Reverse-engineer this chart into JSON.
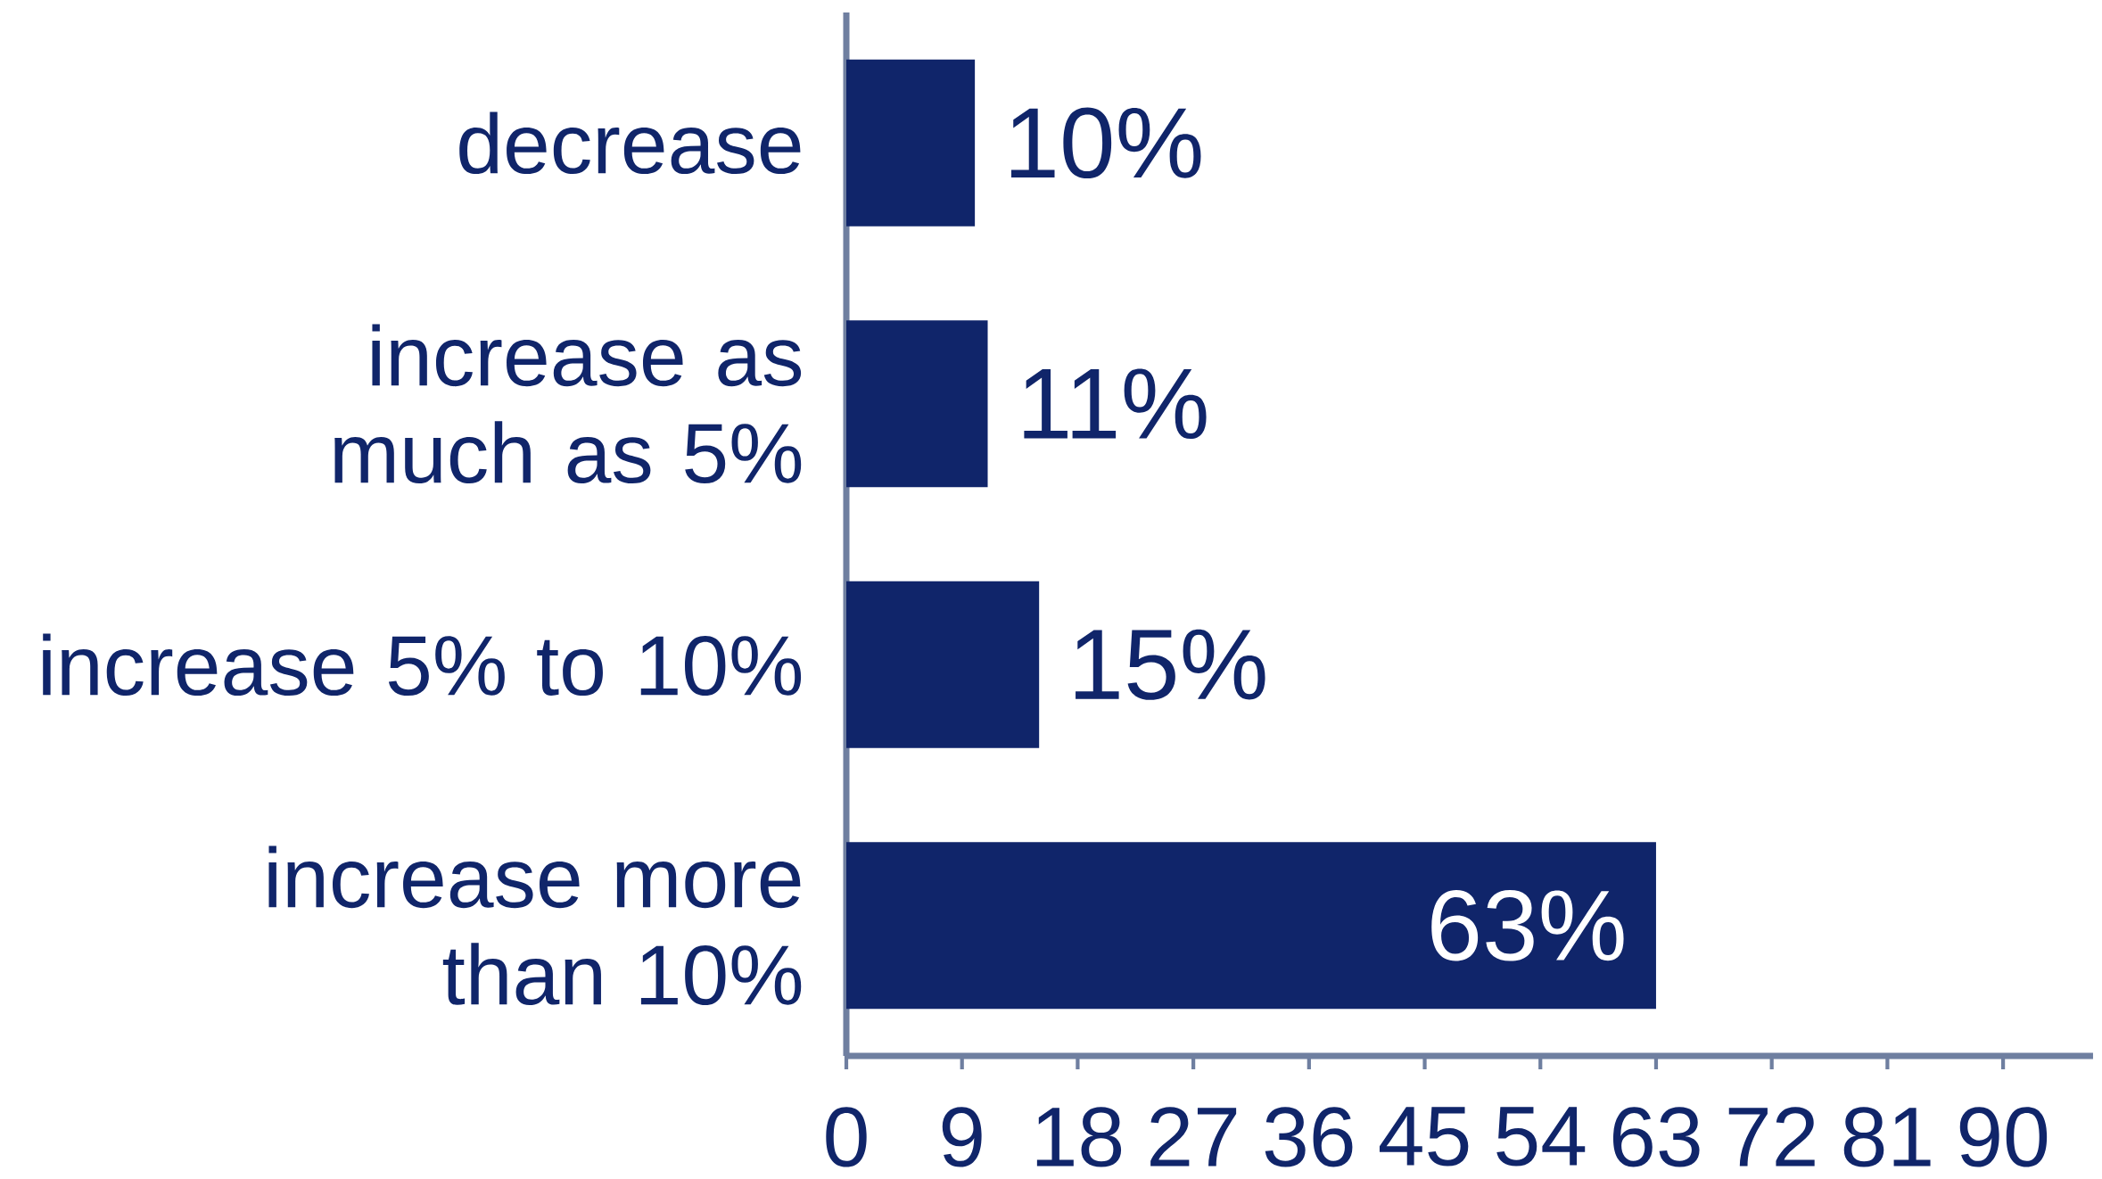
{
  "chart_data": {
    "type": "bar",
    "orientation": "horizontal",
    "categories": [
      "decrease",
      "increase as much as 5%",
      "increase 5% to 10%",
      "increase more than 10%"
    ],
    "values": [
      10,
      11,
      15,
      63
    ],
    "value_labels": [
      "10%",
      "11%",
      "15%",
      "63%"
    ],
    "color": "#10256a",
    "xlim": [
      0,
      97
    ],
    "xticks": [
      0,
      9,
      18,
      27,
      36,
      45,
      54,
      63,
      72,
      81,
      90
    ],
    "grid": false
  }
}
